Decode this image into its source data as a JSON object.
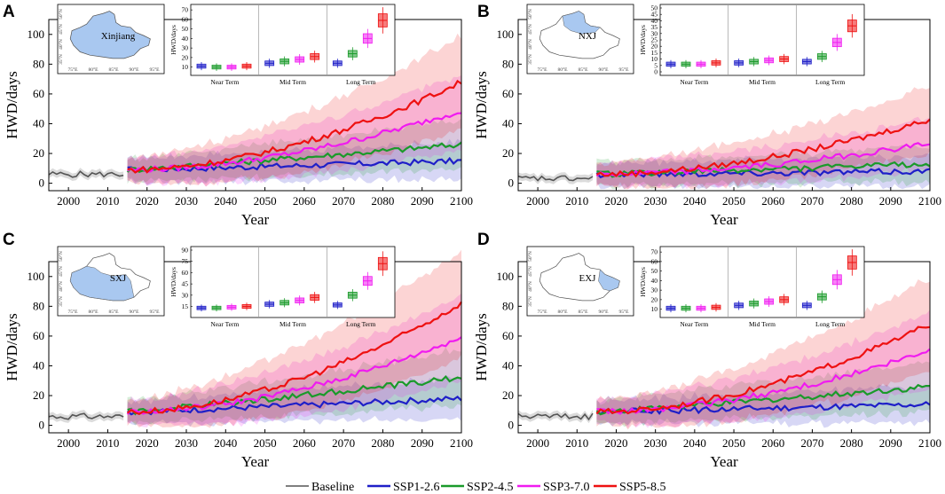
{
  "colors": {
    "Baseline": "#555555",
    "SSP1-2.6": "#1f1fc8",
    "SSP2-4.5": "#1a9a2a",
    "SSP3-7.0": "#f01bf0",
    "SSP5-8.5": "#ee1111",
    "region_fill": "#a9c8f0"
  },
  "legend": [
    "Baseline",
    "SSP1-2.6",
    "SSP2-4.5",
    "SSP3-7.0",
    "SSP5-8.5"
  ],
  "inset_terms": [
    "Near Term",
    "Mid Term",
    "Long Term"
  ],
  "map_lon_labels": [
    "75°E",
    "80°E",
    "85°E",
    "90°E",
    "95°E"
  ],
  "map_lat_labels": [
    "35°N",
    "40°N",
    "45°N",
    "50°N"
  ],
  "chart_data": [
    {
      "panel": "A",
      "type": "line",
      "region_label": "Xinjiang",
      "highlight": "all",
      "xlabel": "Year",
      "ylabel": "HWD/days",
      "xlim": [
        1995,
        2100
      ],
      "ylim": [
        -5,
        110
      ],
      "xticks": [
        2000,
        2010,
        2020,
        2030,
        2040,
        2050,
        2060,
        2070,
        2080,
        2090,
        2100
      ],
      "yticks": [
        0,
        20,
        40,
        60,
        80,
        100
      ],
      "baseline": {
        "start": 1995,
        "end": 2014,
        "mean": 6
      },
      "series_end_values": {
        "SSP1-2.6": 15,
        "SSP2-4.5": 26,
        "SSP3-7.0": 49,
        "SSP5-8.5": 68
      },
      "inset": {
        "ylabel": "HWD/days",
        "yticks": [
          10,
          20,
          30,
          40,
          50,
          60,
          70
        ],
        "ylim": [
          5,
          72
        ],
        "medians": {
          "Near Term": [
            11,
            10,
            10,
            11
          ],
          "Mid Term": [
            14,
            16,
            18,
            21
          ],
          "Long Term": [
            14,
            24,
            40,
            59
          ]
        }
      }
    },
    {
      "panel": "B",
      "type": "line",
      "region_label": "NXJ",
      "highlight": "north",
      "xlabel": "Year",
      "ylabel": "HWD/days",
      "xlim": [
        1995,
        2100
      ],
      "ylim": [
        -5,
        110
      ],
      "xticks": [
        2000,
        2010,
        2020,
        2030,
        2040,
        2050,
        2060,
        2070,
        2080,
        2090,
        2100
      ],
      "yticks": [
        0,
        20,
        40,
        60,
        80,
        100
      ],
      "baseline": {
        "start": 1995,
        "end": 2014,
        "mean": 3
      },
      "series_end_values": {
        "SSP1-2.6": 8,
        "SSP2-4.5": 13,
        "SSP3-7.0": 27,
        "SSP5-8.5": 43
      },
      "inset": {
        "ylabel": "HWD/days",
        "yticks": [
          0,
          5,
          10,
          15,
          20,
          25,
          30,
          35,
          40,
          45,
          50
        ],
        "ylim": [
          0,
          50
        ],
        "medians": {
          "Near Term": [
            6,
            6,
            6,
            7
          ],
          "Mid Term": [
            7,
            8,
            9,
            10
          ],
          "Long Term": [
            8,
            12,
            23,
            36
          ]
        }
      }
    },
    {
      "panel": "C",
      "type": "line",
      "region_label": "SXJ",
      "highlight": "south",
      "xlabel": "Year",
      "ylabel": "HWD/days",
      "xlim": [
        1995,
        2100
      ],
      "ylim": [
        -5,
        110
      ],
      "xticks": [
        2000,
        2010,
        2020,
        2030,
        2040,
        2050,
        2060,
        2070,
        2080,
        2090,
        2100
      ],
      "yticks": [
        0,
        20,
        40,
        60,
        80,
        100
      ],
      "baseline": {
        "start": 1995,
        "end": 2014,
        "mean": 6
      },
      "series_end_values": {
        "SSP1-2.6": 18,
        "SSP2-4.5": 32,
        "SSP3-7.0": 59,
        "SSP5-8.5": 82
      },
      "inset": {
        "ylabel": "HWD/days",
        "yticks": [
          15,
          30,
          45,
          60,
          75,
          90
        ],
        "ylim": [
          5,
          90
        ],
        "medians": {
          "Near Term": [
            13,
            13,
            14,
            15
          ],
          "Mid Term": [
            18,
            20,
            23,
            27
          ],
          "Long Term": [
            17,
            30,
            49,
            72
          ]
        }
      }
    },
    {
      "panel": "D",
      "type": "line",
      "region_label": "EXJ",
      "highlight": "east",
      "xlabel": "Year",
      "ylabel": "HWD/days",
      "xlim": [
        1995,
        2100
      ],
      "ylim": [
        -5,
        110
      ],
      "xticks": [
        2000,
        2010,
        2020,
        2030,
        2040,
        2050,
        2060,
        2070,
        2080,
        2090,
        2100
      ],
      "yticks": [
        0,
        20,
        40,
        60,
        80,
        100
      ],
      "baseline": {
        "start": 1995,
        "end": 2014,
        "mean": 6
      },
      "series_end_values": {
        "SSP1-2.6": 14,
        "SSP2-4.5": 26,
        "SSP3-7.0": 50,
        "SSP5-8.5": 68
      },
      "inset": {
        "ylabel": "HWD/days",
        "yticks": [
          10,
          20,
          30,
          40,
          50,
          60,
          70
        ],
        "ylim": [
          5,
          72
        ],
        "medians": {
          "Near Term": [
            11,
            11,
            11,
            12
          ],
          "Mid Term": [
            14,
            16,
            18,
            20
          ],
          "Long Term": [
            14,
            23,
            41,
            59
          ]
        }
      }
    }
  ]
}
